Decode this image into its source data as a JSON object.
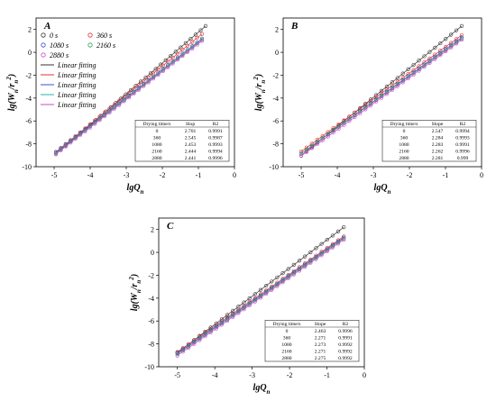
{
  "chart_data": [
    {
      "type": "scatter",
      "panel_label": "A",
      "xlabel": "lgQn",
      "ylabel": "lg(Wn/rn²)",
      "xlim": [
        -5.5,
        0
      ],
      "ylim": [
        -10,
        3
      ],
      "x_ticks": [
        "-5",
        "-4",
        "-3",
        "-2",
        "-1",
        "0"
      ],
      "y_ticks": [
        "2",
        "0",
        "-2",
        "-4",
        "-6",
        "-8",
        "-10"
      ],
      "legend_position": "top-left",
      "legend_entries": [
        {
          "name": "0 s",
          "color": "#333333",
          "kind": "marker"
        },
        {
          "name": "360 s",
          "color": "#e03030",
          "kind": "marker"
        },
        {
          "name": "1080 s",
          "color": "#3050d0",
          "kind": "marker"
        },
        {
          "name": "2160 s",
          "color": "#2aa05a",
          "kind": "marker"
        },
        {
          "name": "2880 s",
          "color": "#cc44cc",
          "kind": "marker"
        },
        {
          "name": "Linear fitting",
          "color": "#333333",
          "kind": "line"
        },
        {
          "name": "Linear fitting",
          "color": "#e03030",
          "kind": "line"
        },
        {
          "name": "Linear fitting",
          "color": "#3050d0",
          "kind": "line"
        },
        {
          "name": "Linear fitting",
          "color": "#2ab0b0",
          "kind": "line"
        },
        {
          "name": "Linear fitting",
          "color": "#cc44cc",
          "kind": "line"
        }
      ],
      "table": {
        "headers": [
          "Drying time/s",
          "Slop",
          "R2"
        ],
        "rows": [
          [
            "0",
            "2.701",
            "0.9991"
          ],
          [
            "360",
            "2.545",
            "0.9987"
          ],
          [
            "1080",
            "2.453",
            "0.9993"
          ],
          [
            "2160",
            "2.444",
            "0.9994"
          ],
          [
            "2880",
            "2.441",
            "0.9996"
          ]
        ],
        "position": "bottom-right"
      },
      "series": [
        {
          "name": "0 s",
          "color": "#333333",
          "slope": 2.701,
          "x_range": [
            -4.95,
            -0.8
          ],
          "end_y": 2.3
        },
        {
          "name": "360 s",
          "color": "#e03030",
          "slope": 2.545,
          "x_range": [
            -4.95,
            -0.9
          ],
          "end_y": 1.6
        },
        {
          "name": "1080 s",
          "color": "#3050d0",
          "slope": 2.453,
          "x_range": [
            -4.95,
            -0.9
          ],
          "end_y": 1.2
        },
        {
          "name": "2160 s",
          "color": "#2aa05a",
          "slope": 2.444,
          "x_range": [
            -4.95,
            -0.9
          ],
          "end_y": 1.1
        },
        {
          "name": "2880 s",
          "color": "#cc44cc",
          "slope": 2.441,
          "x_range": [
            -4.95,
            -0.9
          ],
          "end_y": 1.0
        }
      ]
    },
    {
      "type": "scatter",
      "panel_label": "B",
      "xlabel": "lgQn",
      "ylabel": "lg(Wn/rn²)",
      "xlim": [
        -5.5,
        0
      ],
      "ylim": [
        -10,
        3
      ],
      "x_ticks": [
        "-5",
        "-4",
        "-3",
        "-2",
        "-1",
        "0"
      ],
      "y_ticks": [
        "2",
        "0",
        "-2",
        "-4",
        "-6",
        "-8",
        "-10"
      ],
      "table": {
        "headers": [
          "Drying time/s",
          "Slope",
          "R2"
        ],
        "rows": [
          [
            "0",
            "2.547",
            "0.9994"
          ],
          [
            "360",
            "2.284",
            "0.9993"
          ],
          [
            "1080",
            "2.283",
            "0.9991"
          ],
          [
            "2160",
            "2.262",
            "0.9996"
          ],
          [
            "2880",
            "2.281",
            "0.999"
          ]
        ],
        "position": "bottom-right"
      },
      "series": [
        {
          "name": "0 s",
          "color": "#333333",
          "slope": 2.547,
          "x_range": [
            -5.0,
            -0.55
          ],
          "end_y": 2.3
        },
        {
          "name": "360 s",
          "color": "#e03030",
          "slope": 2.284,
          "x_range": [
            -5.0,
            -0.55
          ],
          "end_y": 1.5
        },
        {
          "name": "1080 s",
          "color": "#3050d0",
          "slope": 2.283,
          "x_range": [
            -5.0,
            -0.55
          ],
          "end_y": 1.3
        },
        {
          "name": "2160 s",
          "color": "#2aa05a",
          "slope": 2.262,
          "x_range": [
            -5.0,
            -0.55
          ],
          "end_y": 1.2
        },
        {
          "name": "2880 s",
          "color": "#cc44cc",
          "slope": 2.281,
          "x_range": [
            -5.0,
            -0.55
          ],
          "end_y": 1.1
        }
      ]
    },
    {
      "type": "scatter",
      "panel_label": "C",
      "xlabel": "lgQn",
      "ylabel": "lg(Wn/rn²)",
      "xlim": [
        -5.5,
        0
      ],
      "ylim": [
        -10,
        3
      ],
      "x_ticks": [
        "-5",
        "-4",
        "-3",
        "-2",
        "-1",
        "0"
      ],
      "y_ticks": [
        "2",
        "0",
        "-2",
        "-4",
        "-6",
        "-8",
        "-10"
      ],
      "table": {
        "headers": [
          "Drying time/s",
          "Slope",
          "R2"
        ],
        "rows": [
          [
            "0",
            "2.463",
            "0.9996"
          ],
          [
            "360",
            "2.271",
            "0.9991"
          ],
          [
            "1080",
            "2.273",
            "0.9992"
          ],
          [
            "2160",
            "2.271",
            "0.9992"
          ],
          [
            "2880",
            "2.275",
            "0.9992"
          ]
        ],
        "position": "bottom-right"
      },
      "series": [
        {
          "name": "0 s",
          "color": "#333333",
          "slope": 2.463,
          "x_range": [
            -5.0,
            -0.55
          ],
          "end_y": 2.2
        },
        {
          "name": "360 s",
          "color": "#e03030",
          "slope": 2.271,
          "x_range": [
            -5.0,
            -0.55
          ],
          "end_y": 1.4
        },
        {
          "name": "1080 s",
          "color": "#3050d0",
          "slope": 2.273,
          "x_range": [
            -5.0,
            -0.55
          ],
          "end_y": 1.3
        },
        {
          "name": "2160 s",
          "color": "#2aa05a",
          "slope": 2.271,
          "x_range": [
            -5.0,
            -0.55
          ],
          "end_y": 1.2
        },
        {
          "name": "2880 s",
          "color": "#cc44cc",
          "slope": 2.275,
          "x_range": [
            -5.0,
            -0.55
          ],
          "end_y": 1.1
        }
      ]
    }
  ]
}
